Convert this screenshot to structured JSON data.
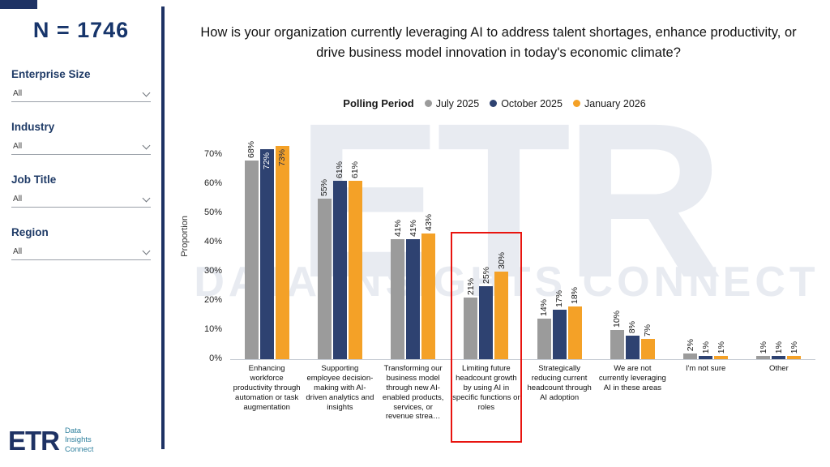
{
  "sidebar": {
    "sample_label": "N = 1746",
    "filters": [
      {
        "label": "Enterprise Size",
        "value": "All"
      },
      {
        "label": "Industry",
        "value": "All"
      },
      {
        "label": "Job Title",
        "value": "All"
      },
      {
        "label": "Region",
        "value": "All"
      }
    ],
    "logo": {
      "brand": "ETR",
      "tagline_lines": [
        "Data",
        "Insights",
        "Connect"
      ]
    }
  },
  "header": {
    "question": "How is your organization currently leveraging AI to address talent shortages, enhance productivity, or drive business model innovation in today's economic climate?"
  },
  "legend": {
    "title": "Polling Period",
    "items": [
      {
        "label": "July 2025",
        "color": "#9b9b9b"
      },
      {
        "label": "October 2025",
        "color": "#2e4271"
      },
      {
        "label": "January 2026",
        "color": "#f4a127"
      }
    ]
  },
  "watermark": {
    "line1": "ETR",
    "line2": "DATA INSIGHTS CONNECT"
  },
  "chart_data": {
    "type": "bar",
    "title": "How is your organization currently leveraging AI to address talent shortages, enhance productivity, or drive business model innovation in today's economic climate?",
    "xlabel": "",
    "ylabel": "Proportion",
    "ylim": [
      0,
      78
    ],
    "ytick_values": [
      0,
      10,
      20,
      30,
      40,
      50,
      60,
      70
    ],
    "legend_position": "top",
    "grid": false,
    "categories": [
      "Enhancing workforce productivity through automation or task augmentation",
      "Supporting employee decision-making with AI-driven analytics and insights",
      "Transforming our business model through new AI-enabled products, services, or revenue strea…",
      "Limiting future headcount growth by using AI in specific functions or roles",
      "Strategically reducing current headcount through AI adoption",
      "We are not currently leveraging AI in these areas",
      "I'm not sure",
      "Other"
    ],
    "series": [
      {
        "name": "July 2025",
        "color": "#9b9b9b",
        "values": [
          68,
          55,
          41,
          21,
          14,
          10,
          2,
          1
        ]
      },
      {
        "name": "October 2025",
        "color": "#2e4271",
        "values": [
          72,
          61,
          41,
          25,
          17,
          8,
          1,
          1
        ]
      },
      {
        "name": "January 2026",
        "color": "#f4a127",
        "values": [
          73,
          61,
          43,
          30,
          18,
          7,
          1,
          1
        ]
      }
    ],
    "value_suffix": "%",
    "highlighted_category_index": 3,
    "highlight_color": "#e8140f"
  }
}
